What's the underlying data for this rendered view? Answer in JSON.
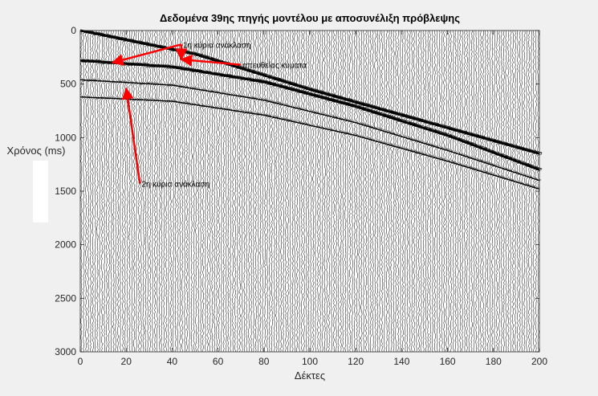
{
  "chart_data": {
    "type": "seismic-wiggle",
    "title": "Δεδομένα 39ης πηγής μοντέλου με αποσυνέλιξη πρόβλεψης",
    "xlabel": "Δέκτες",
    "ylabel": "Χρόνος (ms)",
    "xlim": [
      0,
      200
    ],
    "ylim": [
      0,
      3000
    ],
    "y_reversed": true,
    "x_ticks": [
      "0",
      "20",
      "40",
      "60",
      "80",
      "100",
      "120",
      "140",
      "160",
      "180",
      "200"
    ],
    "y_ticks": [
      "0",
      "500",
      "1000",
      "1500",
      "2000",
      "2500",
      "3000"
    ],
    "x_tick_values": [
      0,
      20,
      40,
      60,
      80,
      100,
      120,
      140,
      160,
      180,
      200
    ],
    "y_tick_values": [
      0,
      500,
      1000,
      1500,
      2000,
      2500,
      3000
    ],
    "traces": 200,
    "events": [
      {
        "name": "απευθείας κύματα",
        "x": [
          0,
          50,
          100,
          150,
          200
        ],
        "y": [
          0,
          220,
          550,
          850,
          1150
        ]
      },
      {
        "name": "1η κύρια ανάκλαση",
        "x": [
          0,
          40,
          80,
          120,
          160,
          200
        ],
        "y": [
          280,
          340,
          480,
          710,
          980,
          1300
        ]
      },
      {
        "name": "2η κύρια ανάκλαση",
        "x": [
          0,
          40,
          80,
          120,
          160,
          200
        ],
        "y": [
          460,
          510,
          650,
          860,
          1120,
          1400
        ]
      },
      {
        "name": "",
        "x": [
          0,
          40,
          80,
          120,
          160,
          200
        ],
        "y": [
          620,
          660,
          790,
          980,
          1220,
          1480
        ]
      }
    ],
    "annotations": [
      {
        "text": "1η κύρια ανάκλαση",
        "x": 44,
        "y": 130,
        "arrow_to": [
          [
            14,
            300
          ],
          [
            44,
            270
          ]
        ]
      },
      {
        "text": "απευθείας κύματα",
        "x": 70,
        "y": 320,
        "arrow_to": [
          [
            44,
            270
          ]
        ]
      },
      {
        "text": "2η κύρια ανάκλαση",
        "x": 26,
        "y": 1430,
        "arrow_to": [
          [
            20,
            540
          ]
        ]
      }
    ],
    "colors": {
      "trace": "#000000",
      "fill": "#000000",
      "arrow": "#ff0000",
      "axes_bg": "#ffffff",
      "figure_bg": "#f0f0f0"
    }
  }
}
